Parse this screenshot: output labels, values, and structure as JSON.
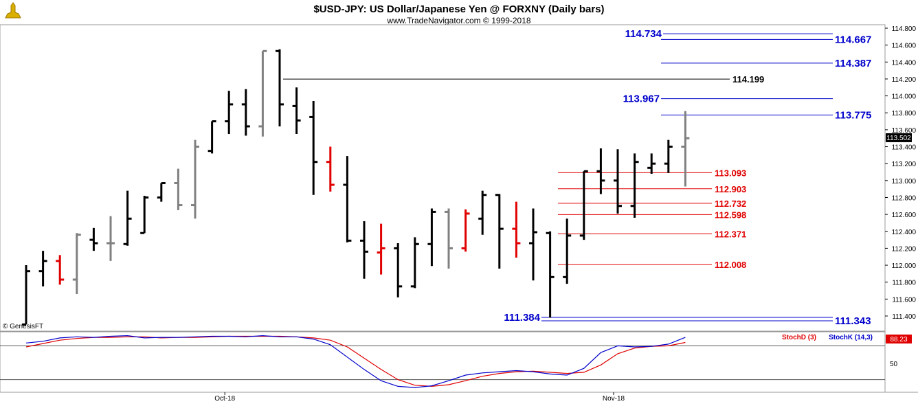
{
  "header": {
    "title": "$USD-JPY:  US Dollar/Japanese Yen @ FORXNY  (Daily bars)",
    "subtitle": "www.TradeNavigator.com © 1999-2018"
  },
  "watermark": "© GenesisFT",
  "colors": {
    "up": "#000000",
    "neutral": "#808080",
    "down": "#e00000",
    "blue_line": "#0000cc",
    "red_line": "#e00000",
    "stoch_d": "#e00000",
    "stoch_k": "#0000cc"
  },
  "chart_data": {
    "type": "ohlc",
    "price_axis": {
      "ticks": [
        "114.800",
        "114.600",
        "114.400",
        "114.200",
        "114.000",
        "113.800",
        "113.600",
        "113.400",
        "113.200",
        "113.000",
        "112.800",
        "112.600",
        "112.400",
        "112.200",
        "112.000",
        "111.800",
        "111.600",
        "111.400"
      ],
      "last_price": "113.502"
    },
    "x_labels": [
      {
        "label": "Oct-18",
        "index": 12
      },
      {
        "label": "Nov-18",
        "index": 35
      }
    ],
    "bars": [
      {
        "o": 111.3,
        "h": 112.0,
        "l": 111.3,
        "c": 111.93,
        "t": "up"
      },
      {
        "o": 111.93,
        "h": 112.17,
        "l": 111.75,
        "c": 112.05,
        "t": "up"
      },
      {
        "o": 112.05,
        "h": 112.12,
        "l": 111.77,
        "c": 111.83,
        "t": "down"
      },
      {
        "o": 111.83,
        "h": 112.38,
        "l": 111.66,
        "c": 112.36,
        "t": "neutral"
      },
      {
        "o": 112.3,
        "h": 112.44,
        "l": 112.17,
        "c": 112.26,
        "t": "up"
      },
      {
        "o": 112.26,
        "h": 112.58,
        "l": 112.05,
        "c": 112.26,
        "t": "neutral"
      },
      {
        "o": 112.25,
        "h": 112.88,
        "l": 112.23,
        "c": 112.55,
        "t": "up"
      },
      {
        "o": 112.38,
        "h": 112.82,
        "l": 112.38,
        "c": 112.8,
        "t": "up"
      },
      {
        "o": 112.8,
        "h": 112.97,
        "l": 112.75,
        "c": 112.97,
        "t": "up"
      },
      {
        "o": 112.97,
        "h": 113.14,
        "l": 112.65,
        "c": 112.71,
        "t": "neutral"
      },
      {
        "o": 112.71,
        "h": 113.48,
        "l": 112.55,
        "c": 113.4,
        "t": "neutral"
      },
      {
        "o": 113.35,
        "h": 113.7,
        "l": 113.32,
        "c": 113.7,
        "t": "up"
      },
      {
        "o": 113.7,
        "h": 114.06,
        "l": 113.55,
        "c": 113.9,
        "t": "up"
      },
      {
        "o": 113.9,
        "h": 114.08,
        "l": 113.53,
        "c": 113.64,
        "t": "up"
      },
      {
        "o": 113.64,
        "h": 114.53,
        "l": 113.52,
        "c": 114.53,
        "t": "neutral"
      },
      {
        "o": 114.53,
        "h": 114.55,
        "l": 113.64,
        "c": 113.9,
        "t": "up"
      },
      {
        "o": 113.88,
        "h": 114.1,
        "l": 113.55,
        "c": 113.71,
        "t": "up"
      },
      {
        "o": 113.75,
        "h": 113.94,
        "l": 112.83,
        "c": 113.22,
        "t": "up"
      },
      {
        "o": 113.22,
        "h": 113.4,
        "l": 112.87,
        "c": 112.95,
        "t": "down"
      },
      {
        "o": 112.95,
        "h": 113.29,
        "l": 112.27,
        "c": 112.29,
        "t": "up"
      },
      {
        "o": 112.29,
        "h": 112.52,
        "l": 111.84,
        "c": 112.16,
        "t": "up"
      },
      {
        "o": 112.15,
        "h": 112.49,
        "l": 111.89,
        "c": 112.2,
        "t": "down"
      },
      {
        "o": 112.2,
        "h": 112.26,
        "l": 111.62,
        "c": 111.75,
        "t": "up"
      },
      {
        "o": 111.75,
        "h": 112.33,
        "l": 111.73,
        "c": 112.25,
        "t": "up"
      },
      {
        "o": 112.25,
        "h": 112.67,
        "l": 111.99,
        "c": 112.63,
        "t": "up"
      },
      {
        "o": 112.63,
        "h": 112.67,
        "l": 111.96,
        "c": 112.2,
        "t": "neutral"
      },
      {
        "o": 112.2,
        "h": 112.66,
        "l": 112.16,
        "c": 112.61,
        "t": "down"
      },
      {
        "o": 112.55,
        "h": 112.88,
        "l": 112.36,
        "c": 112.83,
        "t": "up"
      },
      {
        "o": 112.83,
        "h": 112.84,
        "l": 111.96,
        "c": 112.43,
        "t": "up"
      },
      {
        "o": 112.43,
        "h": 112.75,
        "l": 112.09,
        "c": 112.26,
        "t": "down"
      },
      {
        "o": 112.26,
        "h": 112.67,
        "l": 111.82,
        "c": 112.39,
        "t": "up"
      },
      {
        "o": 112.38,
        "h": 112.4,
        "l": 111.38,
        "c": 111.86,
        "t": "up"
      },
      {
        "o": 111.86,
        "h": 112.55,
        "l": 111.78,
        "c": 112.35,
        "t": "up"
      },
      {
        "o": 112.35,
        "h": 113.11,
        "l": 112.3,
        "c": 113.11,
        "t": "up"
      },
      {
        "o": 113.11,
        "h": 113.38,
        "l": 112.84,
        "c": 113.0,
        "t": "up"
      },
      {
        "o": 113.0,
        "h": 113.37,
        "l": 112.61,
        "c": 112.7,
        "t": "up"
      },
      {
        "o": 112.7,
        "h": 113.32,
        "l": 112.56,
        "c": 113.22,
        "t": "up"
      },
      {
        "o": 113.15,
        "h": 113.32,
        "l": 113.08,
        "c": 113.2,
        "t": "up"
      },
      {
        "o": 113.2,
        "h": 113.48,
        "l": 113.09,
        "c": 113.4,
        "t": "up"
      },
      {
        "o": 113.4,
        "h": 113.82,
        "l": 112.93,
        "c": 113.5,
        "t": "neutral"
      }
    ],
    "levels_blue": [
      {
        "value": 114.734,
        "label": "114.734",
        "side": "left"
      },
      {
        "value": 114.667,
        "label": "114.667",
        "side": "right"
      },
      {
        "value": 114.387,
        "label": "114.387",
        "side": "right"
      },
      {
        "value": 113.967,
        "label": "113.967",
        "side": "left"
      },
      {
        "value": 113.775,
        "label": "113.775",
        "side": "right"
      },
      {
        "value": 111.384,
        "label": "111.384",
        "side": "left"
      },
      {
        "value": 111.343,
        "label": "111.343",
        "side": "right"
      }
    ],
    "level_black": {
      "value": 114.199,
      "label": "114.199"
    },
    "levels_red": [
      {
        "value": 113.093,
        "label": "113.093"
      },
      {
        "value": 112.903,
        "label": "112.903"
      },
      {
        "value": 112.732,
        "label": "112.732"
      },
      {
        "value": 112.598,
        "label": "112.598"
      },
      {
        "value": 112.371,
        "label": "112.371"
      },
      {
        "value": 112.008,
        "label": "112.008"
      }
    ],
    "stochastic": {
      "d_label": "StochD (3)",
      "k_label": "StochK (14,3)",
      "last_value": "88.23",
      "axis_label": "50",
      "overbought": 80,
      "oversold": 20,
      "k": [
        85,
        88,
        94,
        96,
        95,
        97,
        98,
        94,
        95,
        95,
        96,
        97,
        97,
        96,
        98,
        96,
        96,
        92,
        82,
        60,
        38,
        18,
        8,
        6,
        9,
        18,
        28,
        32,
        34,
        36,
        34,
        30,
        28,
        40,
        68,
        80,
        78,
        79,
        83,
        95
      ],
      "d": [
        78,
        84,
        90,
        93,
        95,
        95,
        96,
        96,
        94,
        95,
        95,
        96,
        97,
        97,
        97,
        97,
        96,
        94,
        90,
        78,
        58,
        38,
        20,
        10,
        8,
        11,
        18,
        26,
        31,
        34,
        35,
        33,
        31,
        33,
        46,
        66,
        76,
        79,
        80,
        86
      ]
    }
  }
}
